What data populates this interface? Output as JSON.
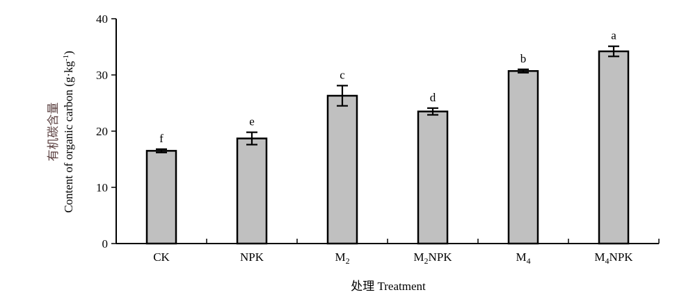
{
  "chart_data": {
    "type": "bar",
    "categories": [
      "CK",
      "NPK",
      "M2",
      "M2NPK",
      "M4",
      "M4NPK"
    ],
    "category_labels": [
      {
        "main": "CK",
        "sub": "",
        "tail": ""
      },
      {
        "main": "NPK",
        "sub": "",
        "tail": ""
      },
      {
        "main": "M",
        "sub": "2",
        "tail": ""
      },
      {
        "main": "M",
        "sub": "2",
        "tail": "NPK"
      },
      {
        "main": "M",
        "sub": "4",
        "tail": ""
      },
      {
        "main": "M",
        "sub": "4",
        "tail": "NPK"
      }
    ],
    "values": [
      16.5,
      18.7,
      26.3,
      23.5,
      30.7,
      34.2
    ],
    "errors": [
      0.3,
      1.1,
      1.8,
      0.6,
      0.3,
      0.9
    ],
    "significance": [
      "f",
      "e",
      "c",
      "d",
      "b",
      "a"
    ],
    "ylim": [
      0,
      40
    ],
    "yticks": [
      0,
      10,
      20,
      30,
      40
    ],
    "xlabel": "处理 Treatment",
    "ylabel_zh": "有机碳含量",
    "ylabel_en": "Content of organic carbon (g·kg",
    "ylabel_en_sup": "-1",
    "ylabel_en_tail": ")",
    "bar_color": "#c0c0c0",
    "grid": false,
    "legend": "none"
  }
}
